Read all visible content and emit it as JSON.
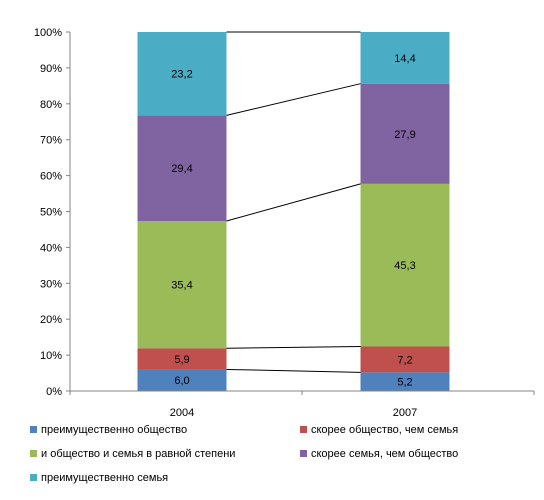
{
  "chart_data": {
    "type": "bar",
    "stacked": true,
    "percent_stacked": true,
    "categories": [
      "2004",
      "2007"
    ],
    "y_ticks": [
      "0%",
      "10%",
      "20%",
      "30%",
      "40%",
      "50%",
      "60%",
      "70%",
      "80%",
      "90%",
      "100%"
    ],
    "ylim": [
      0,
      100
    ],
    "grid": false,
    "series_lines": true,
    "legend_position": "bottom",
    "series": [
      {
        "name": "преимущественно общество",
        "color": "#4F81BD",
        "values": [
          6.0,
          5.2
        ],
        "labels": [
          "6,0",
          "5,2"
        ]
      },
      {
        "name": "скорее общество, чем семья",
        "color": "#C0504D",
        "values": [
          5.9,
          7.2
        ],
        "labels": [
          "5,9",
          "7,2"
        ]
      },
      {
        "name": "и общество и семья в равной степени",
        "color": "#9BBB59",
        "values": [
          35.4,
          45.3
        ],
        "labels": [
          "35,4",
          "45,3"
        ]
      },
      {
        "name": "скорее семья, чем общество",
        "color": "#8064A2",
        "values": [
          29.4,
          27.9
        ],
        "labels": [
          "29,4",
          "27,9"
        ]
      },
      {
        "name": "преимущественно семья",
        "color": "#4BACC6",
        "values": [
          23.2,
          14.4
        ],
        "labels": [
          "23,2",
          "14,4"
        ]
      }
    ]
  }
}
